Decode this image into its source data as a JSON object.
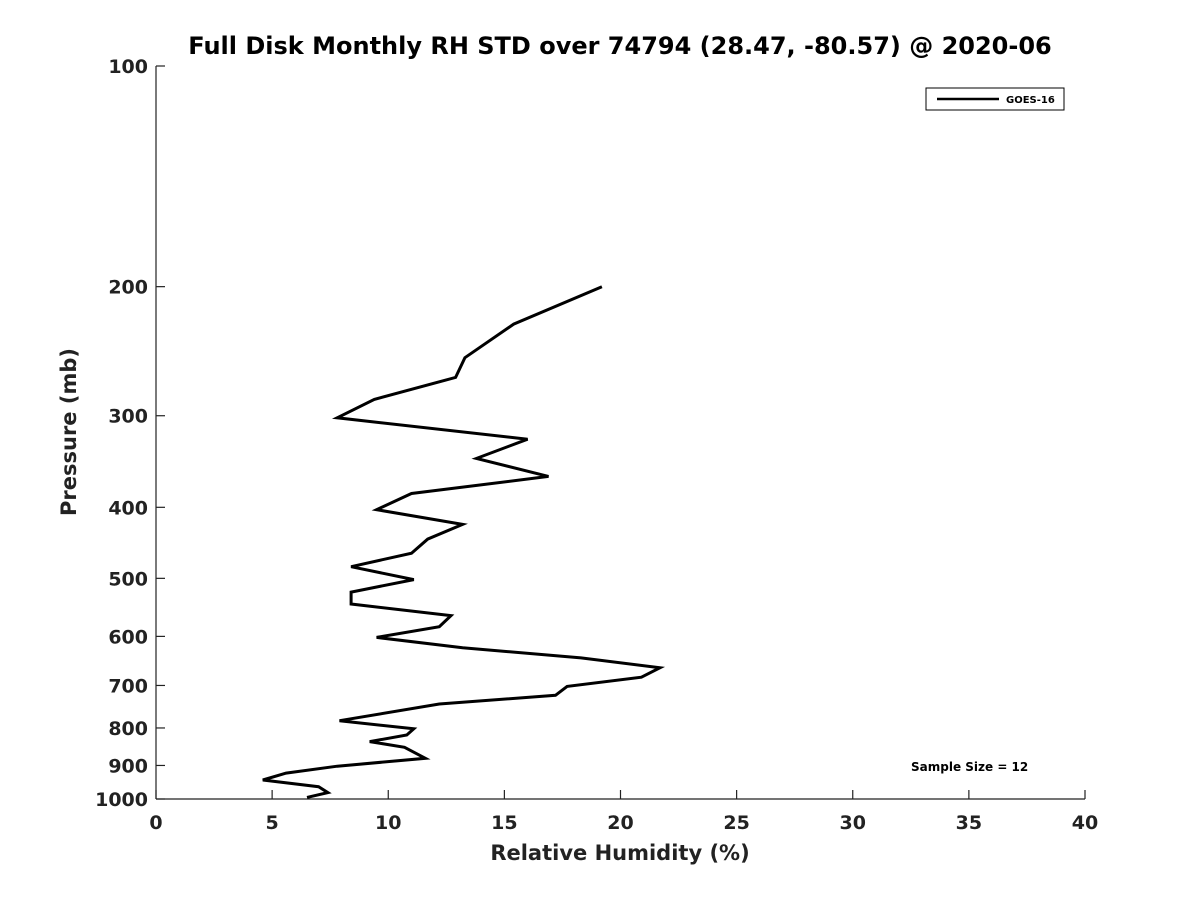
{
  "chart_data": {
    "type": "line",
    "title": "Full Disk Monthly RH STD over 74794 (28.47, -80.57) @ 2020-06",
    "xlabel": "Relative Humidity (%)",
    "ylabel": "Pressure (mb)",
    "xlim": [
      0,
      40
    ],
    "ylim": [
      1000,
      100
    ],
    "yscale": "log",
    "x_ticks": [
      0,
      5,
      10,
      15,
      20,
      25,
      30,
      35,
      40
    ],
    "y_ticks": [
      100,
      200,
      300,
      400,
      500,
      600,
      700,
      800,
      900,
      1000
    ],
    "grid": false,
    "legend_position": "top-right",
    "annotation": "Sample Size = 12",
    "series": [
      {
        "name": "GOES-16",
        "color": "#000000",
        "points": [
          [
            19.2,
            200
          ],
          [
            15.4,
            225
          ],
          [
            13.3,
            250
          ],
          [
            12.9,
            266
          ],
          [
            9.4,
            285
          ],
          [
            7.8,
            302
          ],
          [
            16.0,
            323
          ],
          [
            13.8,
            343
          ],
          [
            16.9,
            363
          ],
          [
            11.0,
            383
          ],
          [
            9.5,
            403
          ],
          [
            13.2,
            422
          ],
          [
            11.7,
            442
          ],
          [
            11.0,
            462
          ],
          [
            8.4,
            482
          ],
          [
            11.1,
            502
          ],
          [
            8.4,
            522
          ],
          [
            8.4,
            542
          ],
          [
            12.7,
            562
          ],
          [
            12.2,
            582
          ],
          [
            9.5,
            602
          ],
          [
            13.2,
            622
          ],
          [
            18.3,
            642
          ],
          [
            21.7,
            662
          ],
          [
            20.9,
            682
          ],
          [
            17.7,
            702
          ],
          [
            17.2,
            722
          ],
          [
            12.2,
            742
          ],
          [
            7.9,
            782
          ],
          [
            11.1,
            802
          ],
          [
            10.8,
            818
          ],
          [
            9.2,
            835
          ],
          [
            10.7,
            850
          ],
          [
            11.6,
            880
          ],
          [
            7.8,
            902
          ],
          [
            5.6,
            922
          ],
          [
            4.6,
            942
          ],
          [
            7.0,
            962
          ],
          [
            7.4,
            980
          ],
          [
            6.5,
            995
          ]
        ]
      }
    ]
  }
}
